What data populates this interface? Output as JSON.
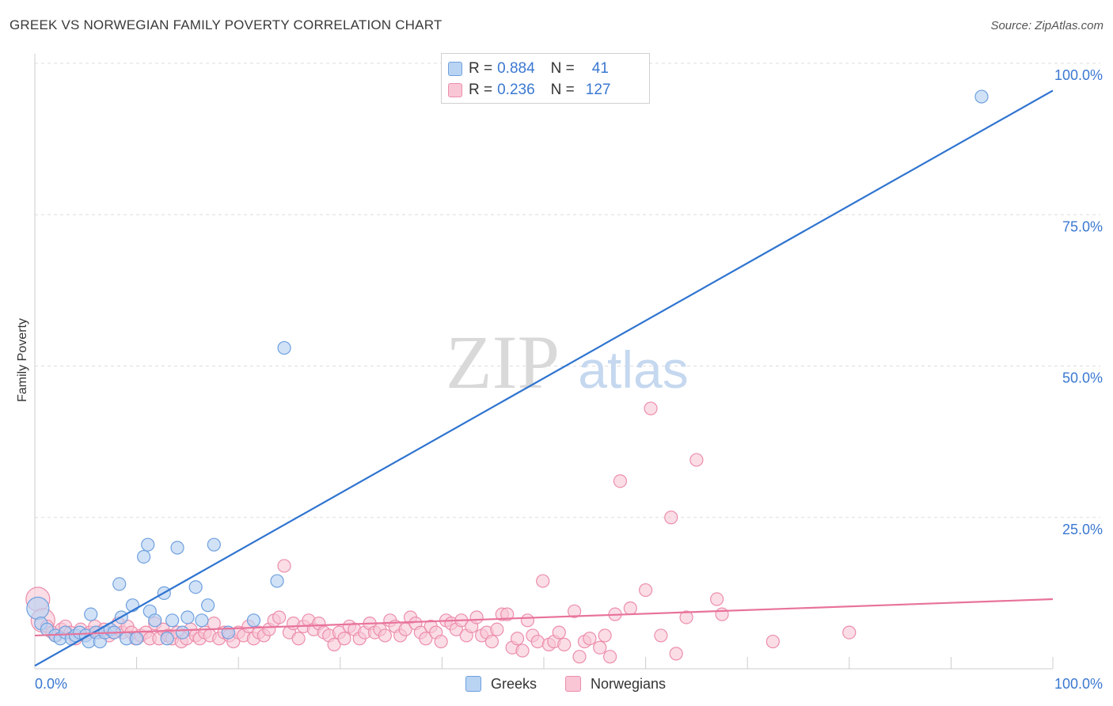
{
  "title": "GREEK VS NORWEGIAN FAMILY POVERTY CORRELATION CHART",
  "source": "Source: ZipAtlas.com",
  "watermark": {
    "zip": "ZIP",
    "atlas": "atlas"
  },
  "colors": {
    "blue_fill": "#b9d3f3",
    "blue_stroke": "#6fa0de",
    "blue_line": "#2f74d0",
    "pink_fill": "#f9c6d5",
    "pink_stroke": "#ec8eab",
    "pink_line": "#e8739a",
    "tick_label": "#3a78d1",
    "grid": "#dddddd"
  },
  "legend": {
    "rows": [
      {
        "r_label": "R =",
        "r_value": "0.884",
        "n_label": "N =",
        "n_value": "41"
      },
      {
        "r_label": "R =",
        "r_value": "0.236",
        "n_label": "N =",
        "n_value": "127"
      }
    ]
  },
  "chart_data": {
    "type": "scatter",
    "title": "GREEK VS NORWEGIAN FAMILY POVERTY CORRELATION CHART",
    "xlabel": "",
    "ylabel": "Family Poverty",
    "xlim": [
      0,
      100
    ],
    "ylim": [
      0,
      100
    ],
    "x_tick_labels": [
      {
        "value": 0,
        "label": "0.0%"
      },
      {
        "value": 100,
        "label": "100.0%"
      }
    ],
    "y_tick_labels": [
      {
        "value": 25,
        "label": "25.0%"
      },
      {
        "value": 50,
        "label": "50.0%"
      },
      {
        "value": 75,
        "label": "75.0%"
      },
      {
        "value": 100,
        "label": "100.0%"
      }
    ],
    "x_minor_ticks": [
      10,
      20,
      30,
      40,
      50,
      60,
      70,
      80,
      90,
      100
    ],
    "series": [
      {
        "name": "Greeks",
        "color": "#6fa0de",
        "r": 0.884,
        "n": 41,
        "trend": {
          "x": [
            0,
            100
          ],
          "y": [
            0.5,
            95.5
          ]
        },
        "points": [
          [
            0.3,
            10.0
          ],
          [
            0.6,
            7.5
          ],
          [
            1.2,
            6.5
          ],
          [
            2.0,
            5.5
          ],
          [
            2.5,
            5.0
          ],
          [
            3.0,
            6.0
          ],
          [
            3.6,
            5.0
          ],
          [
            4.0,
            5.5
          ],
          [
            4.4,
            6.0
          ],
          [
            5.0,
            5.5
          ],
          [
            5.3,
            4.5
          ],
          [
            5.5,
            9.0
          ],
          [
            6.0,
            6.0
          ],
          [
            6.4,
            4.5
          ],
          [
            6.9,
            6.0
          ],
          [
            7.4,
            6.5
          ],
          [
            7.8,
            6.0
          ],
          [
            8.3,
            14.0
          ],
          [
            8.5,
            8.5
          ],
          [
            9.0,
            5.0
          ],
          [
            9.6,
            10.5
          ],
          [
            10.0,
            5.0
          ],
          [
            10.7,
            18.5
          ],
          [
            11.1,
            20.5
          ],
          [
            11.3,
            9.5
          ],
          [
            11.8,
            8.0
          ],
          [
            12.7,
            12.5
          ],
          [
            13.0,
            5.0
          ],
          [
            13.5,
            8.0
          ],
          [
            14.0,
            20.0
          ],
          [
            14.5,
            6.0
          ],
          [
            15.0,
            8.5
          ],
          [
            15.8,
            13.5
          ],
          [
            16.4,
            8.0
          ],
          [
            17.0,
            10.5
          ],
          [
            17.6,
            20.5
          ],
          [
            19.0,
            6.0
          ],
          [
            21.5,
            8.0
          ],
          [
            23.8,
            14.5
          ],
          [
            24.5,
            53.0
          ],
          [
            93.0,
            94.5
          ]
        ]
      },
      {
        "name": "Norwegians",
        "color": "#ec8eab",
        "r": 0.236,
        "n": 127,
        "trend": {
          "x": [
            0,
            100
          ],
          "y": [
            5.5,
            11.5
          ]
        },
        "points": [
          [
            0.3,
            11.5
          ],
          [
            0.8,
            8.0
          ],
          [
            1.2,
            7.0
          ],
          [
            1.7,
            6.0
          ],
          [
            2.1,
            5.5
          ],
          [
            2.6,
            6.5
          ],
          [
            3.0,
            7.0
          ],
          [
            3.5,
            6.0
          ],
          [
            4.0,
            5.0
          ],
          [
            4.5,
            6.5
          ],
          [
            5.0,
            5.5
          ],
          [
            5.4,
            6.0
          ],
          [
            5.9,
            7.0
          ],
          [
            6.3,
            6.0
          ],
          [
            6.8,
            6.5
          ],
          [
            7.3,
            5.5
          ],
          [
            7.7,
            6.0
          ],
          [
            8.2,
            7.5
          ],
          [
            8.6,
            6.0
          ],
          [
            9.1,
            7.0
          ],
          [
            9.5,
            6.0
          ],
          [
            9.9,
            5.0
          ],
          [
            10.4,
            5.5
          ],
          [
            10.9,
            6.0
          ],
          [
            11.3,
            5.0
          ],
          [
            11.8,
            7.5
          ],
          [
            12.2,
            5.0
          ],
          [
            12.6,
            6.5
          ],
          [
            13.1,
            5.5
          ],
          [
            13.5,
            5.0
          ],
          [
            14.0,
            6.0
          ],
          [
            14.4,
            4.5
          ],
          [
            14.9,
            5.0
          ],
          [
            15.3,
            6.5
          ],
          [
            15.8,
            5.5
          ],
          [
            16.2,
            5.0
          ],
          [
            16.7,
            6.0
          ],
          [
            17.2,
            5.5
          ],
          [
            17.6,
            7.5
          ],
          [
            18.1,
            5.0
          ],
          [
            18.6,
            6.0
          ],
          [
            19.1,
            5.5
          ],
          [
            19.5,
            4.5
          ],
          [
            20.0,
            6.0
          ],
          [
            20.5,
            5.5
          ],
          [
            21.0,
            7.0
          ],
          [
            21.5,
            5.0
          ],
          [
            22.0,
            6.0
          ],
          [
            22.5,
            5.5
          ],
          [
            23.0,
            6.5
          ],
          [
            23.5,
            8.0
          ],
          [
            24.0,
            8.5
          ],
          [
            24.5,
            17.0
          ],
          [
            25.0,
            6.0
          ],
          [
            25.4,
            7.5
          ],
          [
            25.9,
            5.0
          ],
          [
            26.4,
            7.0
          ],
          [
            26.9,
            8.0
          ],
          [
            27.4,
            6.5
          ],
          [
            27.9,
            7.5
          ],
          [
            28.4,
            6.0
          ],
          [
            28.9,
            5.5
          ],
          [
            29.4,
            4.0
          ],
          [
            29.9,
            6.0
          ],
          [
            30.4,
            5.0
          ],
          [
            30.9,
            7.0
          ],
          [
            31.4,
            6.5
          ],
          [
            31.9,
            5.0
          ],
          [
            32.4,
            6.0
          ],
          [
            32.9,
            7.5
          ],
          [
            33.4,
            6.0
          ],
          [
            33.9,
            6.5
          ],
          [
            34.4,
            5.5
          ],
          [
            34.9,
            8.0
          ],
          [
            35.4,
            7.0
          ],
          [
            35.9,
            5.5
          ],
          [
            36.4,
            6.5
          ],
          [
            36.9,
            8.5
          ],
          [
            37.4,
            7.5
          ],
          [
            37.9,
            6.0
          ],
          [
            38.4,
            5.0
          ],
          [
            38.9,
            7.0
          ],
          [
            39.4,
            6.0
          ],
          [
            39.9,
            4.5
          ],
          [
            40.4,
            8.0
          ],
          [
            40.9,
            7.5
          ],
          [
            41.4,
            6.5
          ],
          [
            41.9,
            8.0
          ],
          [
            42.4,
            5.5
          ],
          [
            42.9,
            7.0
          ],
          [
            43.4,
            8.5
          ],
          [
            43.9,
            5.5
          ],
          [
            44.4,
            6.0
          ],
          [
            44.9,
            4.5
          ],
          [
            45.4,
            6.5
          ],
          [
            45.9,
            9.0
          ],
          [
            46.4,
            9.0
          ],
          [
            46.9,
            3.5
          ],
          [
            47.4,
            5.0
          ],
          [
            47.9,
            3.0
          ],
          [
            48.4,
            8.0
          ],
          [
            48.9,
            5.5
          ],
          [
            49.4,
            4.5
          ],
          [
            49.9,
            14.5
          ],
          [
            50.5,
            4.0
          ],
          [
            51.0,
            4.5
          ],
          [
            51.5,
            6.0
          ],
          [
            52.0,
            4.0
          ],
          [
            53.0,
            9.5
          ],
          [
            53.5,
            2.0
          ],
          [
            54.0,
            4.5
          ],
          [
            54.5,
            5.0
          ],
          [
            55.5,
            3.5
          ],
          [
            56.0,
            5.5
          ],
          [
            56.5,
            2.0
          ],
          [
            57.0,
            9.0
          ],
          [
            57.5,
            31.0
          ],
          [
            58.5,
            10.0
          ],
          [
            60.0,
            13.0
          ],
          [
            60.5,
            43.0
          ],
          [
            61.5,
            5.5
          ],
          [
            62.5,
            25.0
          ],
          [
            63.0,
            2.5
          ],
          [
            64.0,
            8.5
          ],
          [
            65.0,
            34.5
          ],
          [
            67.0,
            11.5
          ],
          [
            67.5,
            9.0
          ],
          [
            72.5,
            4.5
          ],
          [
            80.0,
            6.0
          ]
        ]
      }
    ]
  },
  "bottom_legend": [
    {
      "label": "Greeks"
    },
    {
      "label": "Norwegians"
    }
  ]
}
